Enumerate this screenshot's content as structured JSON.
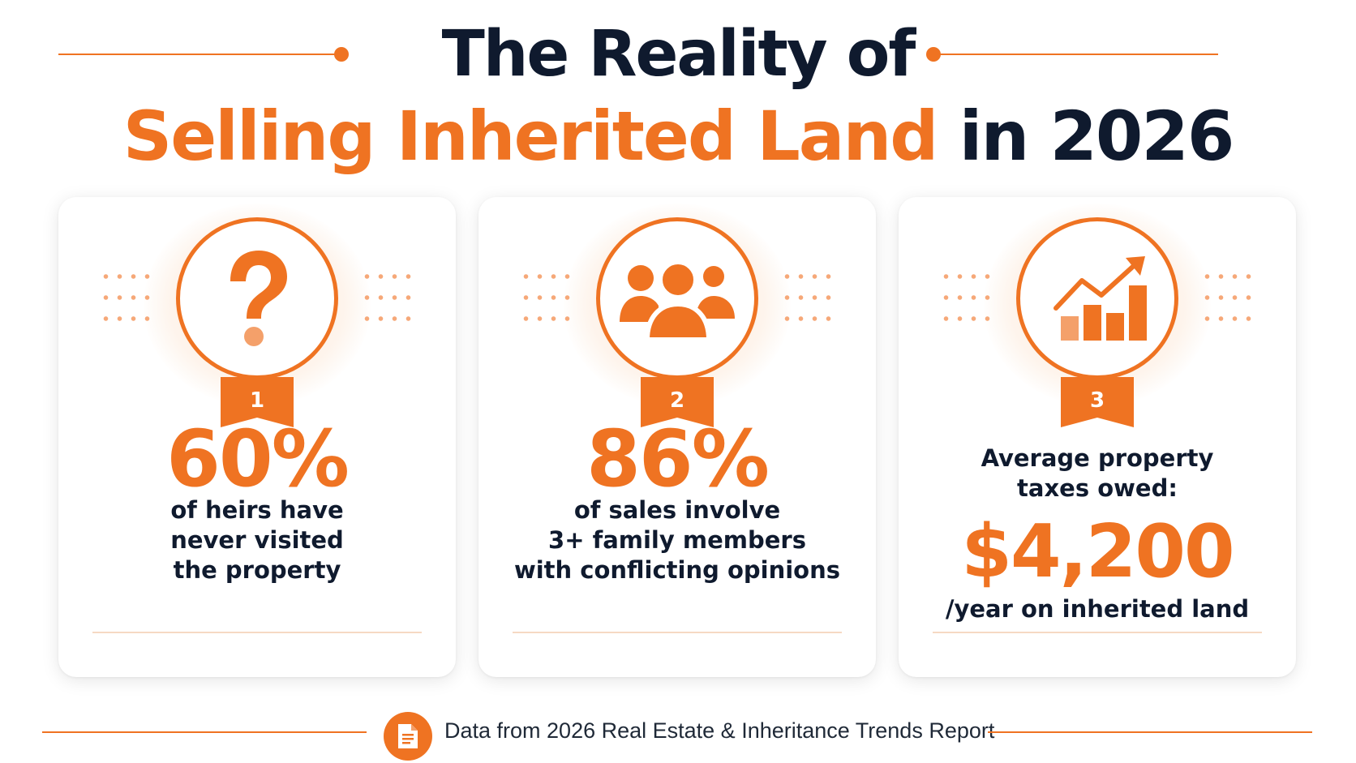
{
  "header": {
    "title_line1": "The Reality of",
    "title_highlight": "Selling Inherited Land",
    "title_rest": " in 2026"
  },
  "cards": [
    {
      "icon": "question-mark-icon",
      "number": "1",
      "stat": "60%",
      "description_lines": [
        "of heirs have",
        "never visited",
        "the property"
      ]
    },
    {
      "icon": "people-group-icon",
      "number": "2",
      "stat": "86%",
      "description_lines": [
        "of sales involve",
        "3+ family members",
        "with conflicting opinions"
      ]
    },
    {
      "icon": "rising-bar-chart-icon",
      "number": "3",
      "pre_lines": [
        "Average property",
        "taxes owed:"
      ],
      "stat": "$4,200",
      "post_line": "/year on inherited land"
    }
  ],
  "footer": {
    "icon": "document-icon",
    "text": "Data from 2026 Real Estate & Inheritance Trends Report"
  },
  "colors": {
    "accent": "#ef7322",
    "dark": "#0f1a2e"
  }
}
